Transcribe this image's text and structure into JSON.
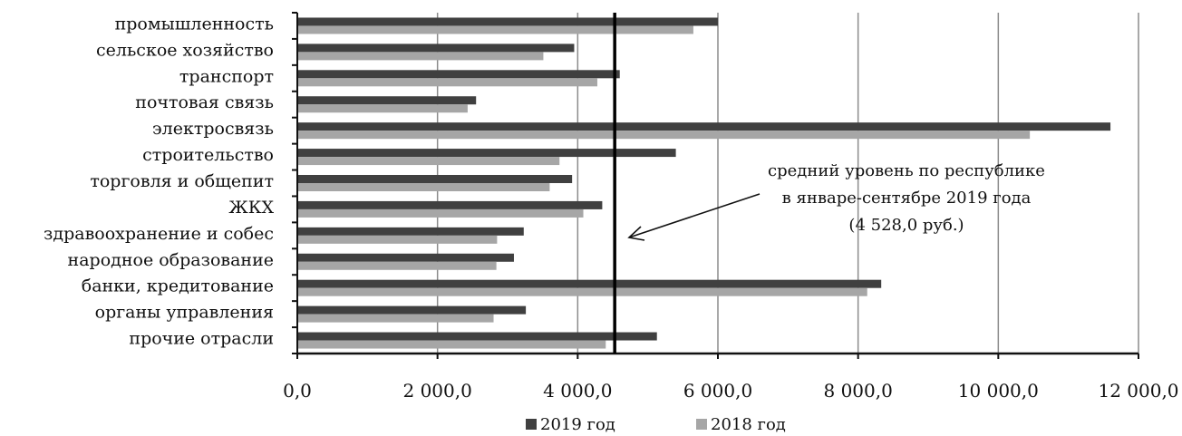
{
  "chart_data": {
    "type": "bar",
    "orientation": "horizontal",
    "categories": [
      "промышленность",
      "сельское хозяйство",
      "транспорт",
      "почтовая связь",
      "электросвязь",
      "строительство",
      "торговля и общепит",
      "ЖКХ",
      "здравоохранение и собес",
      "народное образование",
      "банки, кредитование",
      "органы управления",
      "прочие отрасли"
    ],
    "series": [
      {
        "name": "2019 год",
        "color": "#404040",
        "values": [
          6000,
          3950,
          4600,
          2550,
          11600,
          5400,
          3920,
          4350,
          3230,
          3090,
          8330,
          3260,
          5130
        ]
      },
      {
        "name": "2018 год",
        "color": "#a6a6a6",
        "values": [
          5650,
          3510,
          4280,
          2430,
          10450,
          3740,
          3600,
          4080,
          2850,
          2840,
          8130,
          2800,
          4400
        ]
      }
    ],
    "x_ticks": [
      "0,0",
      "2 000,0",
      "4 000,0",
      "6 000,0",
      "8 000,0",
      "10 000,0",
      "12 000,0"
    ],
    "xlim": [
      0,
      12000
    ],
    "grid": "vertical",
    "reference_line": {
      "value": 4528,
      "annotation": [
        "средний уровень по республике",
        "в январе-сентябре 2019 года",
        "(4 528,0 руб.)"
      ]
    },
    "legend_position": "bottom"
  }
}
